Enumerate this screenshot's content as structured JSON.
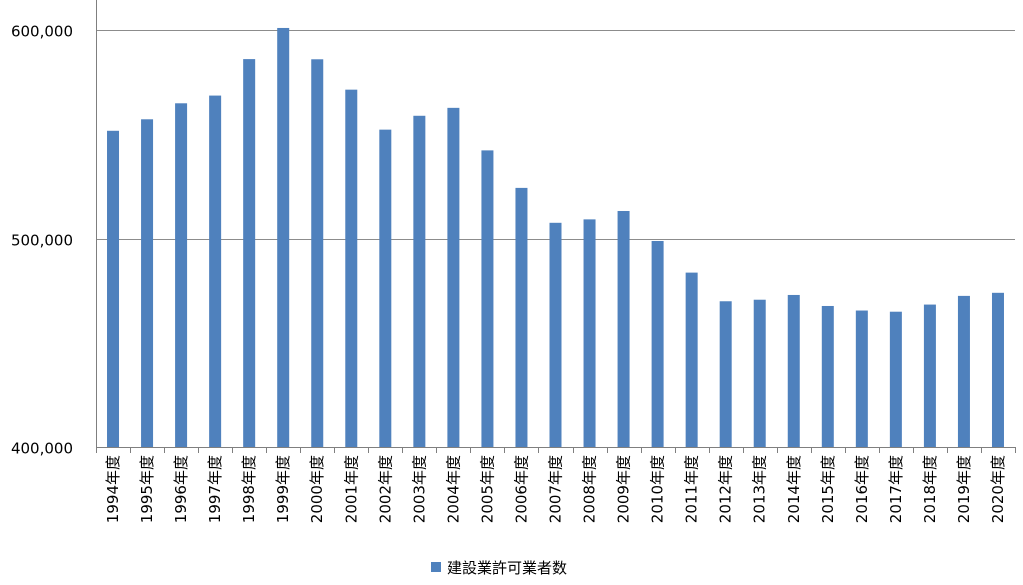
{
  "chart_data": {
    "type": "bar",
    "categories": [
      "1994年度",
      "1995年度",
      "1996年度",
      "1997年度",
      "1998年度",
      "1999年度",
      "2000年度",
      "2001年度",
      "2002年度",
      "2003年度",
      "2004年度",
      "2005年度",
      "2006年度",
      "2007年度",
      "2008年度",
      "2009年度",
      "2010年度",
      "2011年度",
      "2012年度",
      "2013年度",
      "2014年度",
      "2015年度",
      "2016年度",
      "2017年度",
      "2018年度",
      "2019年度",
      "2020年度"
    ],
    "series": [
      {
        "name": "建設業許可業者数",
        "color": "#4F81BD",
        "values": [
          551661,
          557175,
          564849,
          568548,
          586045,
          600980,
          585959,
          571388,
          552210,
          558857,
          562661,
          542264,
          524273,
          507528,
          509174,
          513196,
          498806,
          483639,
          469900,
          470639,
          472921,
          467635,
          465454,
          464889,
          468311,
          472473,
          473952
        ]
      }
    ],
    "y_ticks": [
      "400,000",
      "500,000",
      "600,000"
    ],
    "ylim": [
      400000,
      600000
    ],
    "y_tick_values": [
      400000,
      500000,
      600000
    ],
    "grid": true,
    "legend_position": "bottom",
    "title": "",
    "xlabel": "",
    "ylabel": ""
  }
}
